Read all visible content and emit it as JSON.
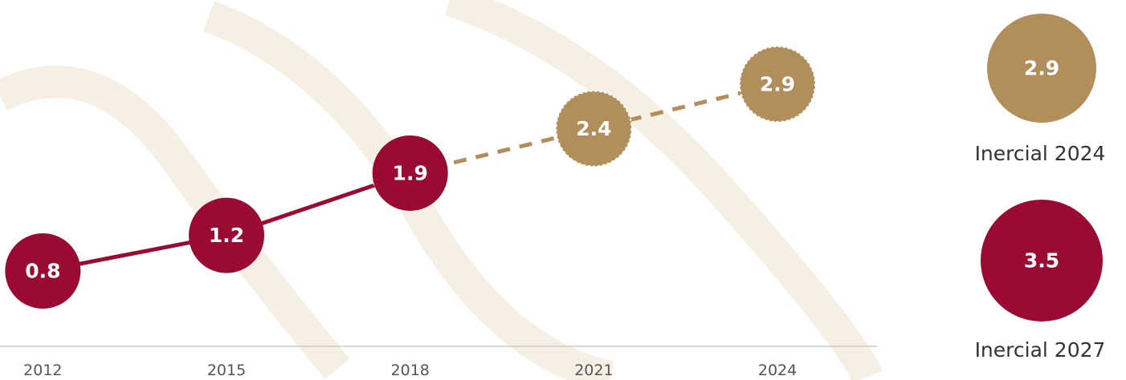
{
  "chart_data": {
    "type": "line",
    "x": [
      2012,
      2015,
      2018,
      2021,
      2024
    ],
    "xlim": [
      2011.3,
      2025.6
    ],
    "xticks": [
      2012,
      2015,
      2018,
      2021,
      2024
    ],
    "series": [
      {
        "color": "#9b0a33",
        "dashed": false,
        "values": [
          0.8,
          1.2,
          1.9,
          null,
          null
        ]
      },
      {
        "color": "#b38e5d",
        "dashed": true,
        "values": [
          null,
          null,
          1.9,
          2.4,
          2.9
        ]
      }
    ]
  },
  "indicators": [
    {
      "label": "Inercial 2024",
      "value": 2.9,
      "color": "#b38e5d"
    },
    {
      "label": "Inercial 2027",
      "value": 3.5,
      "color": "#9b0a33"
    }
  ]
}
